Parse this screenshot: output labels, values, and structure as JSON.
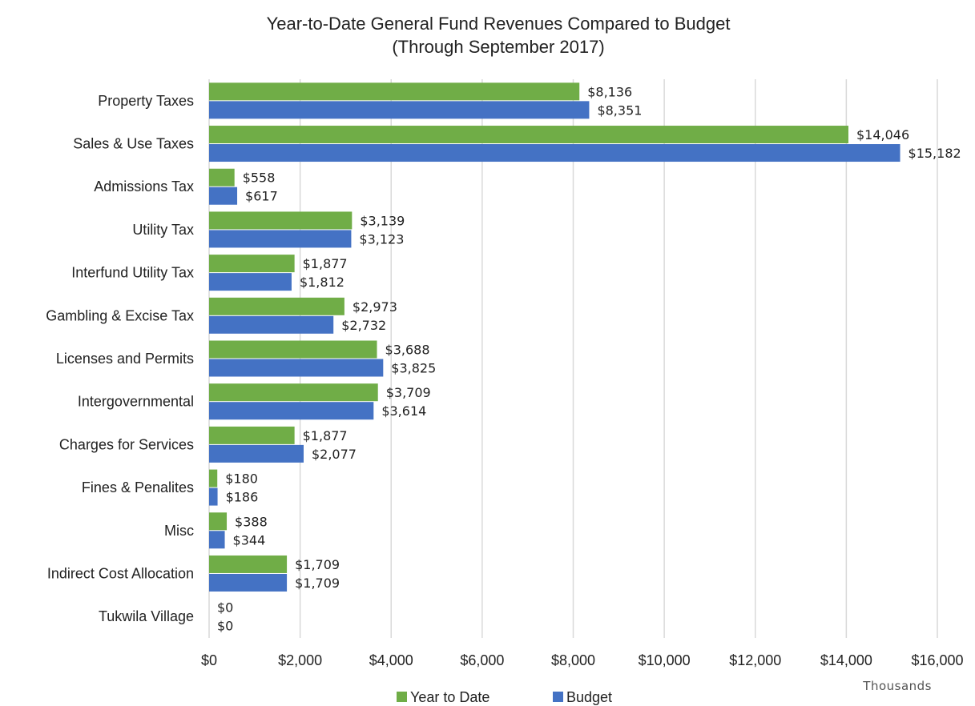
{
  "chart_data": {
    "type": "bar",
    "orientation": "horizontal",
    "title": "Year-to-Date General Fund Revenues Compared to Budget",
    "subtitle": "(Through September 2017)",
    "x_units_label": "Thousands",
    "xlim": [
      0,
      16000
    ],
    "x_ticks": [
      0,
      2000,
      4000,
      6000,
      8000,
      10000,
      12000,
      14000,
      16000
    ],
    "x_tick_labels": [
      "$0",
      "$2,000",
      "$4,000",
      "$6,000",
      "$8,000",
      "$10,000",
      "$12,000",
      "$14,000",
      "$16,000"
    ],
    "grid": true,
    "legend_position": "bottom",
    "categories": [
      "Property Taxes",
      "Sales & Use Taxes",
      "Admissions Tax",
      "Utility Tax",
      "Interfund Utility Tax",
      "Gambling & Excise Tax",
      "Licenses and Permits",
      "Intergovernmental",
      "Charges for Services",
      "Fines & Penalites",
      "Misc",
      "Indirect Cost Allocation",
      "Tukwila Village"
    ],
    "series": [
      {
        "name": "Year to Date",
        "color": "#70ad47",
        "values": [
          8136,
          14046,
          558,
          3139,
          1877,
          2973,
          3688,
          3709,
          1877,
          180,
          388,
          1709,
          0
        ],
        "labels": [
          "$8,136",
          "$14,046",
          "$558",
          "$3,139",
          "$1,877",
          "$2,973",
          "$3,688",
          "$3,709",
          "$1,877",
          "$180",
          "$388",
          "$1,709",
          "$0"
        ]
      },
      {
        "name": "Budget",
        "color": "#4472c4",
        "values": [
          8351,
          15182,
          617,
          3123,
          1812,
          2732,
          3825,
          3614,
          2077,
          186,
          344,
          1709,
          0
        ],
        "labels": [
          "$8,351",
          "$15,182",
          "$617",
          "$3,123",
          "$1,812",
          "$2,732",
          "$3,825",
          "$3,614",
          "$2,077",
          "$186",
          "$344",
          "$1,709",
          "$0"
        ]
      }
    ]
  }
}
